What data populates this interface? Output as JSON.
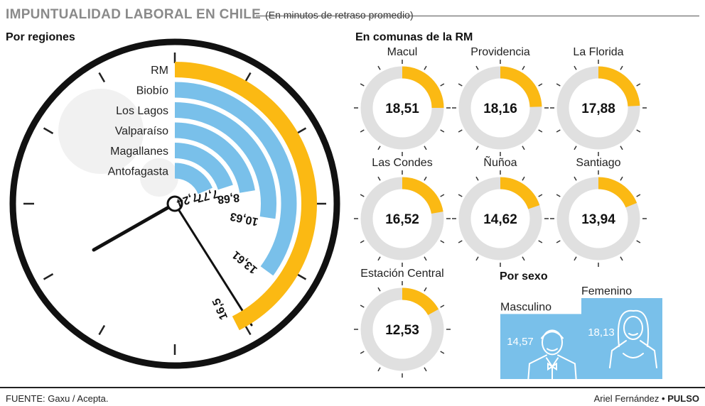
{
  "title": "IMPUNTUALIDAD LABORAL EN CHILE",
  "subtitle": "(En minutos de retraso promedio)",
  "source": "FUENTE: Gaxu / Acepta.",
  "credit": {
    "author": "Ariel Fernández",
    "separator": "•",
    "brand": "PULSO"
  },
  "colors": {
    "highlight": "#fbb913",
    "bar": "#79c0ea",
    "ring": "#e0e0e0",
    "frame": "#111111"
  },
  "chart_data": [
    {
      "type": "bar",
      "title": "Por regiones",
      "categories": [
        "RM",
        "Biobío",
        "Los Lagos",
        "Valparaíso",
        "Magallanes",
        "Antofagasta"
      ],
      "values": [
        16.5,
        13.61,
        10.63,
        8.68,
        7.77,
        7.24
      ],
      "value_labels": [
        "16,5",
        "13,61",
        "10,63",
        "8,68",
        "7,77",
        "7,24"
      ],
      "highlight": "RM"
    },
    {
      "type": "pie",
      "title": "En comunas de la RM",
      "categories": [
        "Macul",
        "Providencia",
        "La Florida",
        "Las Condes",
        "Ñuñoa",
        "Santiago",
        "Estación Central"
      ],
      "values": [
        18.51,
        18.16,
        17.88,
        16.52,
        14.62,
        13.94,
        12.53
      ],
      "value_labels": [
        "18,51",
        "18,16",
        "17,88",
        "16,52",
        "14,62",
        "13,94",
        "12,53"
      ]
    },
    {
      "type": "bar",
      "title": "Por sexo",
      "categories": [
        "Masculino",
        "Femenino"
      ],
      "values": [
        14.57,
        18.13
      ],
      "value_labels": [
        "14,57",
        "18,13"
      ],
      "icons": [
        "man-icon",
        "woman-icon"
      ]
    }
  ]
}
